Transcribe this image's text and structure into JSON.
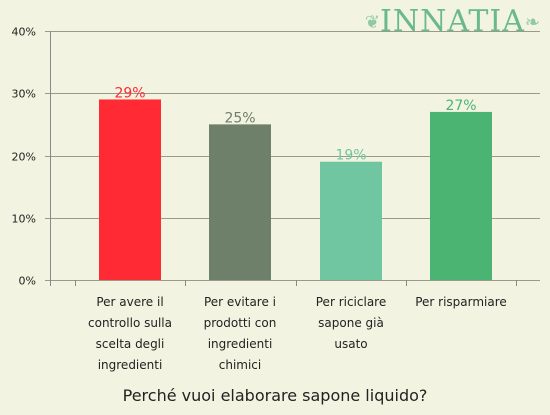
{
  "logo": {
    "text": "INNATIA",
    "left_ornament": "leaf-ornament-icon",
    "right_ornament": "leaf-ornament-icon"
  },
  "chart_data": {
    "type": "bar",
    "title": "Perché vuoi elaborare sapone liquido?",
    "xlabel": "",
    "ylabel": "",
    "categories": [
      "Per avere il controllo sulla scelta degli ingredienti",
      "Per evitare i prodotti con ingredienti chimici",
      "Per riciclare sapone già usato",
      "Per risparmiare"
    ],
    "values": [
      29,
      25,
      19,
      27
    ],
    "value_labels": [
      "29%",
      "25%",
      "19%",
      "27%"
    ],
    "colors": [
      "#ff2a33",
      "#6e806a",
      "#6fc6a0",
      "#4cb473"
    ],
    "ylim": [
      0,
      40
    ],
    "yticks": [
      0,
      10,
      20,
      30,
      40
    ],
    "ytick_labels": [
      "0%",
      "10%",
      "20%",
      "30%",
      "40%"
    ],
    "grid": true,
    "legend": "none"
  }
}
